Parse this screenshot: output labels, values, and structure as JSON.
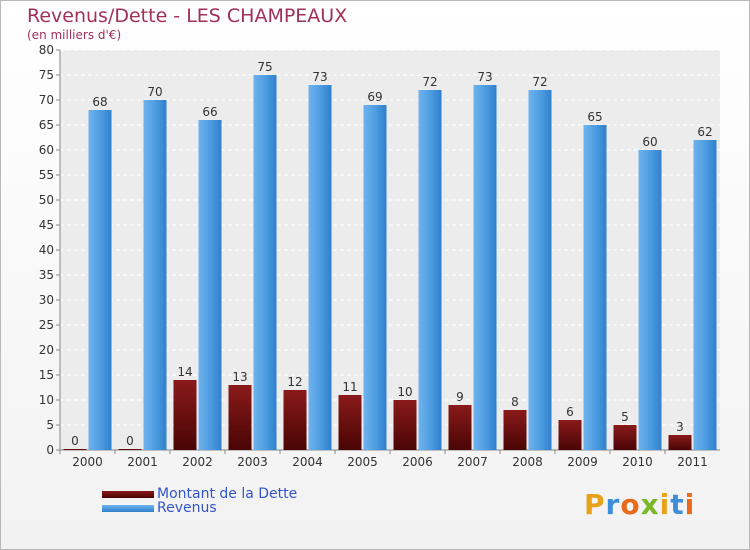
{
  "chart_data": {
    "type": "bar",
    "title": "Revenus/Dette - LES CHAMPEAUX",
    "subtitle": "(en milliers d'€)",
    "categories": [
      "2000",
      "2001",
      "2002",
      "2003",
      "2004",
      "2005",
      "2006",
      "2007",
      "2008",
      "2009",
      "2010",
      "2011"
    ],
    "series": [
      {
        "name": "Montant de la Dette",
        "color": "#6b0a0a",
        "values": [
          0,
          0,
          14,
          13,
          12,
          11,
          10,
          9,
          8,
          6,
          5,
          3
        ]
      },
      {
        "name": "Revenus",
        "color": "#3d8ed8",
        "values": [
          68,
          70,
          66,
          75,
          73,
          69,
          72,
          73,
          72,
          65,
          60,
          62
        ]
      }
    ],
    "ylim": [
      0,
      80
    ],
    "yticks": [
      0,
      5,
      10,
      15,
      20,
      25,
      30,
      35,
      40,
      45,
      50,
      55,
      60,
      65,
      70,
      75,
      80
    ],
    "grid": true,
    "legend": "bottom-left"
  },
  "logo_text": "Proxiti"
}
